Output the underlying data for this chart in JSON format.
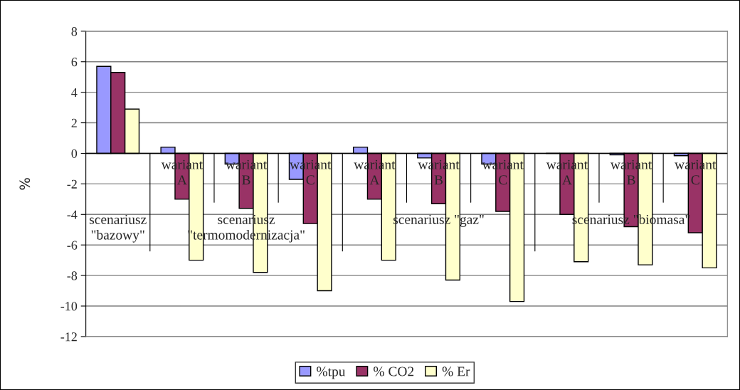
{
  "chart_data": {
    "type": "bar",
    "ylabel": "%",
    "categories": [
      null,
      "wariant\nA",
      "wariant\nB",
      "wariant\nC",
      "wariant\nA",
      "wariant\nB",
      "wariant\nC",
      "wariant\nA",
      "wariant\nB",
      "wariant\nC"
    ],
    "series": [
      {
        "name": "%tpu",
        "color": "#9999ff",
        "values": [
          5.7,
          0.4,
          -0.7,
          -1.7,
          0.4,
          -0.3,
          -0.7,
          0,
          -0.1,
          -0.15
        ]
      },
      {
        "name": "% CO2",
        "color": "#993366",
        "values": [
          5.3,
          -3.0,
          -3.6,
          -4.6,
          -3.0,
          -3.3,
          -3.8,
          -4.0,
          -4.8,
          -5.2
        ]
      },
      {
        "name": "% Er",
        "color": "#ffffcc",
        "values": [
          2.9,
          -7.0,
          -7.8,
          -9.0,
          -7.0,
          -8.3,
          -9.7,
          -7.1,
          -7.3,
          -7.5
        ]
      }
    ],
    "annotations": [
      "scenariusz\n\"bazowy\"",
      "scenariusz\n\"termomodernizacja\"",
      "scenariusz \"gaz\"",
      "scenariusz \"biomasa\""
    ],
    "ylim": [
      -12,
      8
    ],
    "yticks": [
      -12,
      -10,
      -8,
      -6,
      -4,
      -2,
      0,
      2,
      4,
      6,
      8
    ],
    "grid": "y",
    "legend": "bottom"
  }
}
